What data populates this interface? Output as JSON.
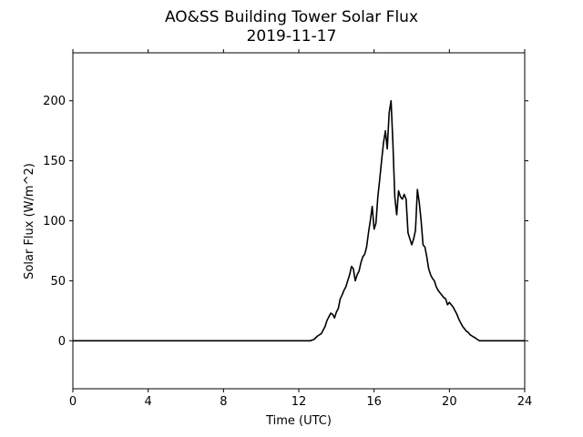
{
  "chart_data": {
    "type": "line",
    "title": "AO&SS Building Tower Solar Flux",
    "subtitle": "2019-11-17",
    "xlabel": "Time (UTC)",
    "ylabel": "Solar Flux (W/m^2)",
    "xlim": [
      0,
      24
    ],
    "ylim": [
      -40,
      240
    ],
    "xticks": [
      0,
      4,
      8,
      12,
      16,
      20,
      24
    ],
    "yticks": [
      0,
      50,
      100,
      150,
      200
    ],
    "grid": false,
    "line_color": "#000000",
    "series": [
      {
        "x": [
          0,
          12.6,
          12.8,
          13.0,
          13.2,
          13.4,
          13.5,
          13.6,
          13.7,
          13.8,
          13.9,
          14.0,
          14.1,
          14.2,
          14.3,
          14.4,
          14.5,
          14.6,
          14.7,
          14.8,
          14.9,
          15.0,
          15.1,
          15.2,
          15.3,
          15.4,
          15.5,
          15.6,
          15.7,
          15.8,
          15.9,
          16.0,
          16.1,
          16.2,
          16.3,
          16.4,
          16.5,
          16.6,
          16.7,
          16.8,
          16.9,
          17.0,
          17.1,
          17.2,
          17.3,
          17.4,
          17.5,
          17.6,
          17.7,
          17.8,
          17.9,
          18.0,
          18.1,
          18.2,
          18.3,
          18.4,
          18.5,
          18.6,
          18.7,
          18.8,
          18.9,
          19.0,
          19.1,
          19.2,
          19.3,
          19.4,
          19.5,
          19.6,
          19.7,
          19.8,
          19.9,
          20.0,
          20.1,
          20.2,
          20.3,
          20.4,
          20.5,
          20.6,
          20.7,
          20.8,
          20.9,
          21.0,
          21.1,
          21.2,
          21.3,
          21.4,
          21.5,
          21.6,
          21.7,
          21.8,
          21.9,
          22.0,
          22.1,
          22.2,
          22.3,
          22.4,
          22.5,
          22.7,
          24
        ],
        "y": [
          0,
          0,
          1,
          4,
          6,
          12,
          17,
          20,
          23,
          22,
          19,
          24,
          27,
          35,
          38,
          42,
          45,
          50,
          55,
          62,
          60,
          50,
          55,
          58,
          65,
          70,
          72,
          78,
          90,
          100,
          112,
          93,
          98,
          120,
          135,
          150,
          165,
          175,
          160,
          190,
          200,
          165,
          120,
          105,
          125,
          120,
          118,
          122,
          118,
          90,
          85,
          80,
          85,
          92,
          126,
          115,
          100,
          80,
          78,
          70,
          60,
          55,
          52,
          50,
          45,
          42,
          40,
          38,
          36,
          35,
          30,
          32,
          30,
          28,
          25,
          22,
          18,
          15,
          12,
          10,
          8,
          7,
          5,
          4,
          3,
          2,
          1,
          0,
          0,
          0,
          0,
          0,
          0,
          0,
          0,
          0,
          0,
          0,
          0
        ]
      }
    ]
  }
}
